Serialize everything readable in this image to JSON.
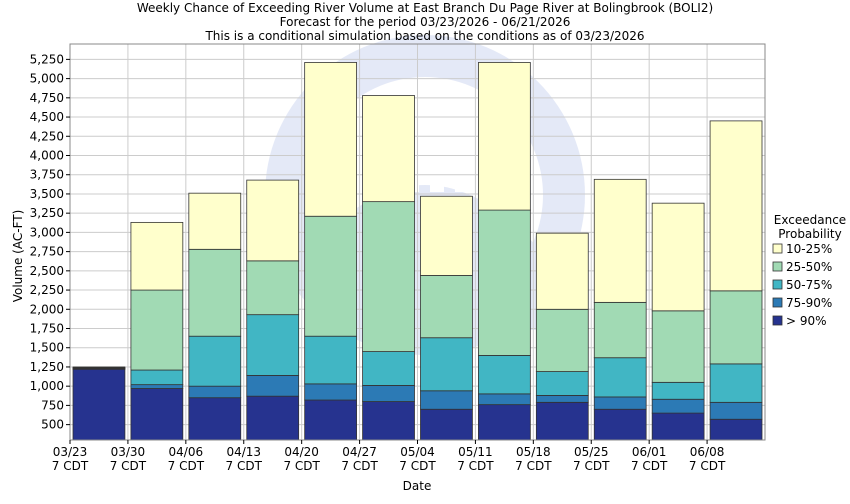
{
  "chart_data": {
    "type": "bar",
    "stacked": true,
    "title": "Weekly Chance of Exceeding River Volume at East Branch Du Page River at Bolingbrook (BOLI2)",
    "subtitle": "Forecast for the period 03/23/2026 - 06/21/2026",
    "subtitle2": "This is a conditional simulation based on the conditions as of 03/23/2026",
    "xlabel": "Date",
    "ylabel": "Volume (AC-FT)",
    "ylim": [
      300,
      5450
    ],
    "yticks": [
      500,
      750,
      1000,
      1250,
      1500,
      1750,
      2000,
      2250,
      2500,
      2750,
      3000,
      3250,
      3500,
      3750,
      4000,
      4250,
      4500,
      4750,
      5000,
      5250
    ],
    "ytick_labels": [
      "500",
      "750",
      "1,000",
      "1,250",
      "1,500",
      "1,750",
      "2,000",
      "2,250",
      "2,500",
      "2,750",
      "3,000",
      "3,250",
      "3,500",
      "3,750",
      "4,000",
      "4,250",
      "4,500",
      "4,750",
      "5,000",
      "5,250"
    ],
    "xtick_dates": [
      "03/23",
      "03/30",
      "04/06",
      "04/13",
      "04/20",
      "04/27",
      "05/04",
      "05/11",
      "05/18",
      "05/25",
      "06/01",
      "06/08"
    ],
    "xtick_sub": "7 CDT",
    "grid": true,
    "legend_title": "Exceedance\nProbability",
    "legend_position": "right",
    "series": [
      {
        "name": "> 90%",
        "color": "#26338f"
      },
      {
        "name": "75-90%",
        "color": "#2c7ab5"
      },
      {
        "name": "50-75%",
        "color": "#41b6c4"
      },
      {
        "name": "25-50%",
        "color": "#a1dab4"
      },
      {
        "name": "10-25%",
        "color": "#ffffcc"
      }
    ],
    "legend_order": [
      "10-25%",
      "25-50%",
      "50-75%",
      "75-90%",
      "> 90%"
    ],
    "bars": [
      {
        "week": "03/23",
        "values": [
          1220,
          1230,
          1235,
          1240,
          1250
        ]
      },
      {
        "week": "03/30",
        "values": [
          970,
          1020,
          1210,
          2250,
          3130
        ]
      },
      {
        "week": "04/06",
        "values": [
          850,
          1000,
          1650,
          2780,
          3510
        ]
      },
      {
        "week": "04/13",
        "values": [
          870,
          1140,
          1930,
          2630,
          3680
        ]
      },
      {
        "week": "04/20",
        "values": [
          820,
          1030,
          1650,
          3210,
          5210
        ]
      },
      {
        "week": "04/27",
        "values": [
          800,
          1010,
          1450,
          3400,
          4780
        ]
      },
      {
        "week": "05/04",
        "values": [
          700,
          940,
          1630,
          2440,
          3470
        ]
      },
      {
        "week": "05/11",
        "values": [
          760,
          900,
          1400,
          3290,
          5210
        ]
      },
      {
        "week": "05/18",
        "values": [
          790,
          880,
          1190,
          2000,
          2990
        ]
      },
      {
        "week": "05/25",
        "values": [
          700,
          860,
          1370,
          2090,
          3690
        ]
      },
      {
        "week": "06/01",
        "values": [
          650,
          830,
          1050,
          1980,
          3380
        ]
      },
      {
        "week": "06/08",
        "values": [
          570,
          790,
          1290,
          2240,
          4450
        ]
      }
    ]
  }
}
